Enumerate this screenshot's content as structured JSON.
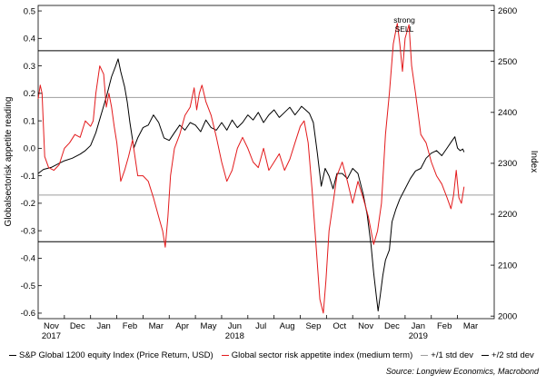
{
  "chart_data": {
    "type": "line",
    "ylabel": "Globalsectorisk appetite reading",
    "y2label": "Index",
    "ylim": [
      -0.62,
      0.52
    ],
    "y2lim": [
      1995,
      2610
    ],
    "y_ticks": [
      "0.5",
      "0.4",
      "0.3",
      "0.2",
      "0.1",
      "0.0",
      "-0.1",
      "-0.2",
      "-0.3",
      "-0.4",
      "-0.5",
      "-0.6"
    ],
    "y2_ticks": [
      "2600",
      "2500",
      "2400",
      "2300",
      "2200",
      "2100",
      "2000"
    ],
    "x_ticks": [
      "Nov",
      "Dec",
      "Jan",
      "Feb",
      "Mar",
      "Apr",
      "May",
      "Jun",
      "Jul",
      "Aug",
      "Sep",
      "Oct",
      "Nov",
      "Dec",
      "Jan",
      "Feb",
      "Mar"
    ],
    "x_years": [
      "2017",
      "2018",
      "2019"
    ],
    "xlim": [
      0,
      17.4
    ],
    "hlines": [
      {
        "name": "+2 std dev",
        "value": 0.355,
        "color": "#000000"
      },
      {
        "name": "+1 std dev",
        "value": 0.185,
        "color": "#9e9e9e"
      },
      {
        "name": "-1 std dev",
        "value": -0.17,
        "color": "#9e9e9e"
      },
      {
        "name": "-2 std dev",
        "value": -0.34,
        "color": "#000000"
      }
    ],
    "annotation": {
      "text": [
        "strong",
        "SELL"
      ],
      "x": 13.42,
      "y": 0.445
    },
    "series": [
      {
        "name": "S&P Global 1200 equity Index (Price Return, USD)",
        "axis": "right",
        "color": "#000000",
        "points": [
          [
            0,
            2280
          ],
          [
            0.2,
            2288
          ],
          [
            0.5,
            2292
          ],
          [
            0.8,
            2300
          ],
          [
            1,
            2305
          ],
          [
            1.3,
            2310
          ],
          [
            1.6,
            2318
          ],
          [
            1.8,
            2325
          ],
          [
            2.0,
            2335
          ],
          [
            2.2,
            2360
          ],
          [
            2.4,
            2395
          ],
          [
            2.6,
            2430
          ],
          [
            2.8,
            2470
          ],
          [
            2.95,
            2490
          ],
          [
            3.05,
            2505
          ],
          [
            3.15,
            2480
          ],
          [
            3.3,
            2450
          ],
          [
            3.4,
            2420
          ],
          [
            3.5,
            2380
          ],
          [
            3.65,
            2330
          ],
          [
            3.8,
            2350
          ],
          [
            4.0,
            2370
          ],
          [
            4.2,
            2375
          ],
          [
            4.4,
            2395
          ],
          [
            4.6,
            2380
          ],
          [
            4.8,
            2350
          ],
          [
            5.0,
            2345
          ],
          [
            5.2,
            2360
          ],
          [
            5.4,
            2375
          ],
          [
            5.6,
            2365
          ],
          [
            5.8,
            2380
          ],
          [
            6.0,
            2375
          ],
          [
            6.2,
            2362
          ],
          [
            6.4,
            2385
          ],
          [
            6.6,
            2370
          ],
          [
            6.8,
            2365
          ],
          [
            7.0,
            2380
          ],
          [
            7.2,
            2365
          ],
          [
            7.4,
            2385
          ],
          [
            7.6,
            2370
          ],
          [
            7.8,
            2380
          ],
          [
            8.0,
            2395
          ],
          [
            8.2,
            2385
          ],
          [
            8.4,
            2400
          ],
          [
            8.6,
            2380
          ],
          [
            8.8,
            2395
          ],
          [
            9.0,
            2405
          ],
          [
            9.2,
            2390
          ],
          [
            9.4,
            2400
          ],
          [
            9.6,
            2410
          ],
          [
            9.8,
            2395
          ],
          [
            9.95,
            2405
          ],
          [
            10.05,
            2412
          ],
          [
            10.2,
            2405
          ],
          [
            10.35,
            2398
          ],
          [
            10.5,
            2380
          ],
          [
            10.65,
            2320
          ],
          [
            10.8,
            2255
          ],
          [
            10.95,
            2290
          ],
          [
            11.1,
            2275
          ],
          [
            11.25,
            2250
          ],
          [
            11.4,
            2280
          ],
          [
            11.6,
            2280
          ],
          [
            11.8,
            2270
          ],
          [
            12.0,
            2290
          ],
          [
            12.2,
            2280
          ],
          [
            12.4,
            2240
          ],
          [
            12.55,
            2200
          ],
          [
            12.7,
            2140
          ],
          [
            12.8,
            2085
          ],
          [
            12.9,
            2040
          ],
          [
            12.97,
            2010
          ],
          [
            13.05,
            2040
          ],
          [
            13.15,
            2080
          ],
          [
            13.25,
            2110
          ],
          [
            13.4,
            2130
          ],
          [
            13.5,
            2185
          ],
          [
            13.65,
            2210
          ],
          [
            13.8,
            2230
          ],
          [
            14.0,
            2250
          ],
          [
            14.2,
            2270
          ],
          [
            14.4,
            2285
          ],
          [
            14.6,
            2290
          ],
          [
            14.8,
            2310
          ],
          [
            15.0,
            2320
          ],
          [
            15.2,
            2325
          ],
          [
            15.4,
            2315
          ],
          [
            15.6,
            2330
          ],
          [
            15.8,
            2345
          ],
          [
            15.9,
            2352
          ],
          [
            16.0,
            2330
          ],
          [
            16.1,
            2325
          ],
          [
            16.2,
            2328
          ],
          [
            16.25,
            2322
          ]
        ]
      },
      {
        "name": "Global sector risk appetite index (medium term)",
        "axis": "left",
        "color": "#e31a1c",
        "points": [
          [
            0,
            0.18
          ],
          [
            0.08,
            0.23
          ],
          [
            0.15,
            0.2
          ],
          [
            0.25,
            -0.03
          ],
          [
            0.4,
            -0.07
          ],
          [
            0.6,
            -0.08
          ],
          [
            0.8,
            -0.06
          ],
          [
            1.0,
            0.0
          ],
          [
            1.2,
            0.02
          ],
          [
            1.4,
            0.05
          ],
          [
            1.6,
            0.04
          ],
          [
            1.8,
            0.1
          ],
          [
            2.0,
            0.08
          ],
          [
            2.1,
            0.1
          ],
          [
            2.2,
            0.2
          ],
          [
            2.35,
            0.3
          ],
          [
            2.5,
            0.27
          ],
          [
            2.6,
            0.15
          ],
          [
            2.7,
            0.2
          ],
          [
            2.8,
            0.15
          ],
          [
            2.9,
            0.08
          ],
          [
            3.0,
            0.02
          ],
          [
            3.15,
            -0.12
          ],
          [
            3.3,
            -0.08
          ],
          [
            3.45,
            -0.03
          ],
          [
            3.6,
            0.03
          ],
          [
            3.8,
            -0.1
          ],
          [
            4.0,
            -0.1
          ],
          [
            4.2,
            -0.12
          ],
          [
            4.4,
            -0.18
          ],
          [
            4.6,
            -0.25
          ],
          [
            4.75,
            -0.3
          ],
          [
            4.85,
            -0.36
          ],
          [
            4.95,
            -0.25
          ],
          [
            5.05,
            -0.1
          ],
          [
            5.2,
            0.0
          ],
          [
            5.4,
            0.05
          ],
          [
            5.6,
            0.12
          ],
          [
            5.8,
            0.15
          ],
          [
            5.95,
            0.22
          ],
          [
            6.05,
            0.14
          ],
          [
            6.15,
            0.2
          ],
          [
            6.25,
            0.23
          ],
          [
            6.4,
            0.17
          ],
          [
            6.6,
            0.12
          ],
          [
            6.8,
            0.04
          ],
          [
            7.0,
            -0.05
          ],
          [
            7.2,
            -0.12
          ],
          [
            7.4,
            -0.08
          ],
          [
            7.6,
            0.0
          ],
          [
            7.8,
            0.04
          ],
          [
            8.0,
            0.0
          ],
          [
            8.2,
            -0.05
          ],
          [
            8.4,
            -0.07
          ],
          [
            8.6,
            0.0
          ],
          [
            8.8,
            -0.08
          ],
          [
            9.0,
            -0.05
          ],
          [
            9.2,
            -0.02
          ],
          [
            9.4,
            -0.08
          ],
          [
            9.6,
            -0.04
          ],
          [
            9.8,
            0.02
          ],
          [
            10.0,
            0.08
          ],
          [
            10.15,
            0.1
          ],
          [
            10.3,
            0.02
          ],
          [
            10.45,
            -0.15
          ],
          [
            10.6,
            -0.35
          ],
          [
            10.75,
            -0.55
          ],
          [
            10.88,
            -0.6
          ],
          [
            10.98,
            -0.48
          ],
          [
            11.1,
            -0.3
          ],
          [
            11.25,
            -0.2
          ],
          [
            11.4,
            -0.1
          ],
          [
            11.6,
            -0.05
          ],
          [
            11.8,
            -0.12
          ],
          [
            12.0,
            -0.2
          ],
          [
            12.2,
            -0.12
          ],
          [
            12.4,
            -0.18
          ],
          [
            12.6,
            -0.25
          ],
          [
            12.8,
            -0.35
          ],
          [
            12.95,
            -0.3
          ],
          [
            13.1,
            -0.2
          ],
          [
            13.25,
            0.05
          ],
          [
            13.4,
            0.2
          ],
          [
            13.55,
            0.38
          ],
          [
            13.7,
            0.455
          ],
          [
            13.8,
            0.38
          ],
          [
            13.9,
            0.28
          ],
          [
            14.0,
            0.4
          ],
          [
            14.15,
            0.45
          ],
          [
            14.25,
            0.3
          ],
          [
            14.4,
            0.2
          ],
          [
            14.6,
            0.05
          ],
          [
            14.8,
            0.02
          ],
          [
            15.0,
            -0.05
          ],
          [
            15.2,
            -0.1
          ],
          [
            15.4,
            -0.13
          ],
          [
            15.6,
            -0.18
          ],
          [
            15.75,
            -0.22
          ],
          [
            15.85,
            -0.17
          ],
          [
            15.95,
            -0.08
          ],
          [
            16.05,
            -0.18
          ],
          [
            16.15,
            -0.2
          ],
          [
            16.25,
            -0.14
          ]
        ]
      }
    ],
    "legend": [
      {
        "label": "S&P Global 1200 equity Index (Price Return, USD)",
        "color": "#000000"
      },
      {
        "label": "Global sector risk appetite index (medium term)",
        "color": "#e31a1c"
      },
      {
        "label": "+/1 std dev",
        "color": "#9e9e9e"
      },
      {
        "label": "+/2 std dev",
        "color": "#000000"
      }
    ],
    "source": "Source: Longview Economics, Macrobond"
  }
}
